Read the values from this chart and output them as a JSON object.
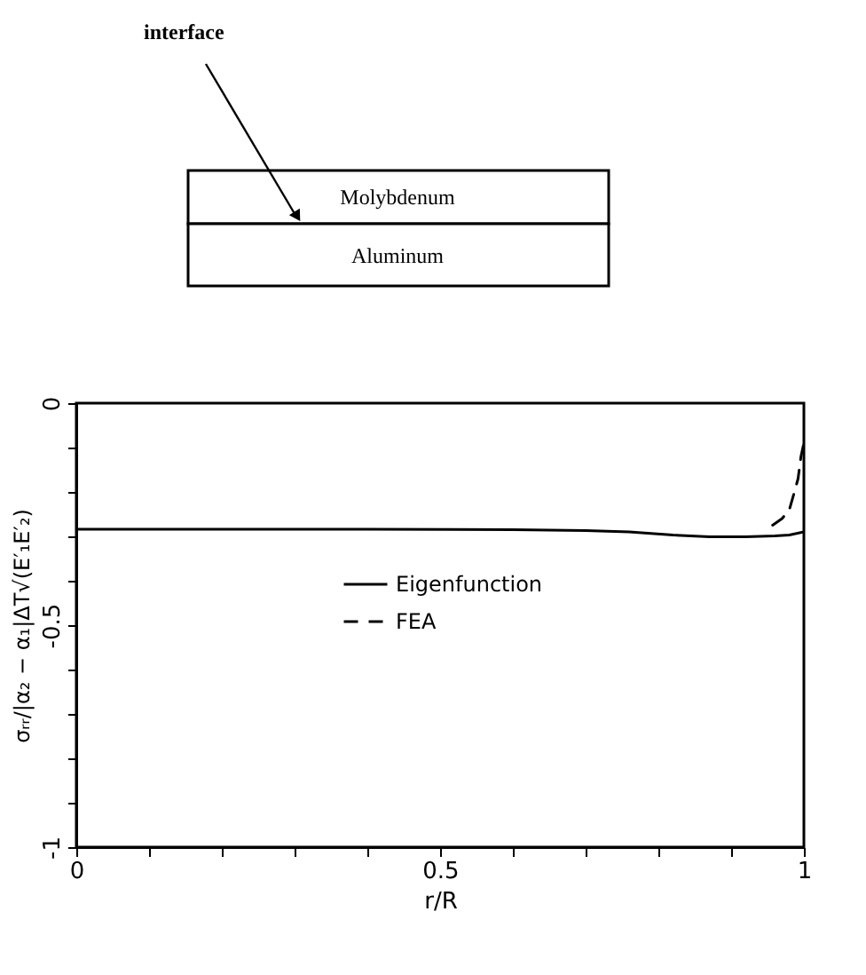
{
  "chart_data": {
    "type": "line",
    "xlabel": "r/R",
    "ylabel": "σᵣᵣ/|α₂ − α₁|ΔT√(E′₁E′₂)",
    "annotations": [
      "interface",
      "Molybdenum",
      "Aluminum"
    ],
    "xlim": [
      0,
      1
    ],
    "ylim": [
      -1,
      0
    ],
    "xticks": [
      0,
      {
        "value": 0.1,
        "label": null
      },
      {
        "value": 0.2,
        "label": null
      },
      {
        "value": 0.3,
        "label": null
      },
      {
        "value": 0.4,
        "label": null
      },
      0.5,
      {
        "value": 0.6,
        "label": null
      },
      {
        "value": 0.7,
        "label": null
      },
      {
        "value": 0.8,
        "label": null
      },
      {
        "value": 0.9,
        "label": null
      },
      1
    ],
    "yticks": [
      -1,
      {
        "value": -0.9,
        "label": null
      },
      {
        "value": -0.8,
        "label": null
      },
      {
        "value": -0.7,
        "label": null
      },
      {
        "value": -0.6,
        "label": null
      },
      -0.5,
      {
        "value": -0.4,
        "label": null
      },
      {
        "value": -0.3,
        "label": null
      },
      {
        "value": -0.2,
        "label": null
      },
      {
        "value": -0.1,
        "label": null
      },
      0
    ],
    "grid": false,
    "legend": "center",
    "series": [
      {
        "name": "Eigenfunction",
        "color": "#000000",
        "line_style": "solid",
        "x": [
          0,
          0.2,
          0.4,
          0.6,
          0.7,
          0.76,
          0.82,
          0.87,
          0.92,
          0.96,
          0.98,
          1
        ],
        "values": [
          -0.284,
          -0.284,
          -0.284,
          -0.285,
          -0.287,
          -0.29,
          -0.297,
          -0.301,
          -0.301,
          -0.299,
          -0.297,
          -0.29
        ]
      },
      {
        "name": "FEA",
        "color": "#000000",
        "line_style": "dashed",
        "x": [
          0.957,
          0.97,
          0.98,
          0.987,
          0.992,
          0.996,
          1
        ],
        "values": [
          -0.275,
          -0.26,
          -0.24,
          -0.2,
          -0.17,
          -0.12,
          -0.09
        ]
      }
    ]
  }
}
